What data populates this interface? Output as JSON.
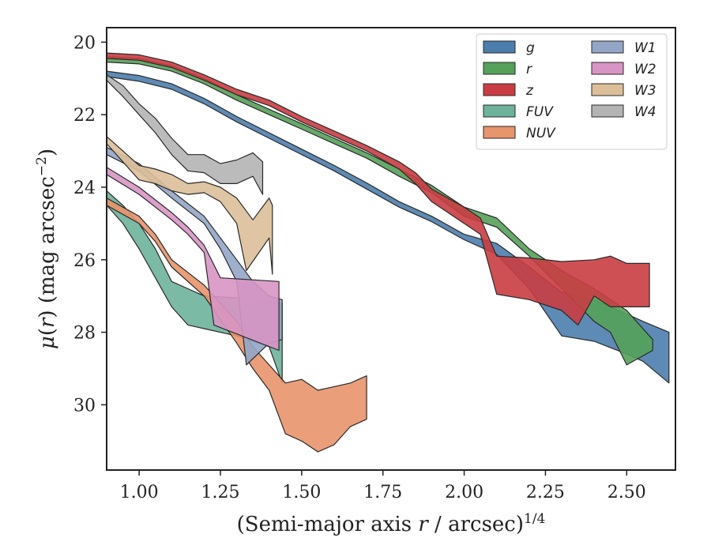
{
  "chart_data": {
    "type": "area",
    "xlabel": "(Semi-major axis r / arcsec)^{1/4}",
    "ylabel": "μ(r) (mag arcsec^{-2})",
    "xlim": [
      0.9,
      2.65
    ],
    "ylim": [
      31.8,
      19.6
    ],
    "y_inverted": true,
    "grid": false,
    "legend_position": "top-right",
    "legend_columns": 2,
    "x_ticks": [
      1.0,
      1.25,
      1.5,
      1.75,
      2.0,
      2.25,
      2.5
    ],
    "x_tick_labels": [
      "1.00",
      "1.25",
      "1.50",
      "1.75",
      "2.00",
      "2.25",
      "2.50"
    ],
    "y_ticks": [
      20,
      22,
      24,
      26,
      28,
      30
    ],
    "y_tick_labels": [
      "20",
      "22",
      "24",
      "26",
      "28",
      "30"
    ],
    "series": [
      {
        "name": "g",
        "color": "#4c7ead",
        "upper": [
          [
            0.9,
            20.8
          ],
          [
            1.0,
            20.92
          ],
          [
            1.1,
            21.15
          ],
          [
            1.2,
            21.55
          ],
          [
            1.3,
            22.05
          ],
          [
            1.4,
            22.5
          ],
          [
            1.5,
            22.95
          ],
          [
            1.6,
            23.4
          ],
          [
            1.7,
            23.88
          ],
          [
            1.8,
            24.4
          ],
          [
            1.9,
            24.8
          ],
          [
            2.0,
            25.3
          ],
          [
            2.1,
            25.55
          ],
          [
            2.2,
            26.2
          ],
          [
            2.3,
            26.9
          ],
          [
            2.4,
            27.1
          ],
          [
            2.5,
            27.5
          ],
          [
            2.55,
            27.7
          ],
          [
            2.63,
            28.0
          ]
        ],
        "lower": [
          [
            0.9,
            20.95
          ],
          [
            1.0,
            21.08
          ],
          [
            1.1,
            21.3
          ],
          [
            1.2,
            21.7
          ],
          [
            1.3,
            22.2
          ],
          [
            1.4,
            22.65
          ],
          [
            1.5,
            23.1
          ],
          [
            1.6,
            23.55
          ],
          [
            1.7,
            24.05
          ],
          [
            1.8,
            24.55
          ],
          [
            1.9,
            24.95
          ],
          [
            2.0,
            25.45
          ],
          [
            2.1,
            25.85
          ],
          [
            2.2,
            26.8
          ],
          [
            2.3,
            28.1
          ],
          [
            2.4,
            28.25
          ],
          [
            2.5,
            28.6
          ],
          [
            2.55,
            28.8
          ],
          [
            2.63,
            29.4
          ]
        ]
      },
      {
        "name": "r",
        "color": "#55a15a",
        "upper": [
          [
            0.9,
            20.4
          ],
          [
            1.0,
            20.45
          ],
          [
            1.1,
            20.65
          ],
          [
            1.2,
            21.0
          ],
          [
            1.3,
            21.45
          ],
          [
            1.4,
            21.85
          ],
          [
            1.5,
            22.25
          ],
          [
            1.6,
            22.65
          ],
          [
            1.7,
            23.05
          ],
          [
            1.8,
            23.5
          ],
          [
            1.9,
            23.95
          ],
          [
            2.0,
            24.55
          ],
          [
            2.1,
            24.85
          ],
          [
            2.2,
            25.7
          ],
          [
            2.3,
            26.3
          ],
          [
            2.4,
            26.8
          ],
          [
            2.45,
            27.1
          ],
          [
            2.5,
            27.4
          ],
          [
            2.58,
            28.2
          ]
        ],
        "lower": [
          [
            0.9,
            20.55
          ],
          [
            1.0,
            20.6
          ],
          [
            1.1,
            20.8
          ],
          [
            1.2,
            21.15
          ],
          [
            1.3,
            21.6
          ],
          [
            1.4,
            22.0
          ],
          [
            1.5,
            22.4
          ],
          [
            1.6,
            22.8
          ],
          [
            1.7,
            23.2
          ],
          [
            1.8,
            23.7
          ],
          [
            1.9,
            24.15
          ],
          [
            2.0,
            24.8
          ],
          [
            2.1,
            25.1
          ],
          [
            2.2,
            25.9
          ],
          [
            2.3,
            26.8
          ],
          [
            2.4,
            27.7
          ],
          [
            2.45,
            28.0
          ],
          [
            2.5,
            28.9
          ],
          [
            2.58,
            28.5
          ]
        ]
      },
      {
        "name": "z",
        "color": "#c93d42",
        "upper": [
          [
            0.9,
            20.3
          ],
          [
            1.0,
            20.35
          ],
          [
            1.1,
            20.55
          ],
          [
            1.2,
            20.9
          ],
          [
            1.3,
            21.3
          ],
          [
            1.4,
            21.6
          ],
          [
            1.5,
            22.05
          ],
          [
            1.6,
            22.45
          ],
          [
            1.7,
            22.85
          ],
          [
            1.8,
            23.3
          ],
          [
            1.85,
            23.6
          ],
          [
            1.9,
            24.05
          ],
          [
            2.0,
            24.55
          ],
          [
            2.05,
            24.85
          ],
          [
            2.1,
            25.9
          ],
          [
            2.2,
            25.95
          ],
          [
            2.3,
            26.05
          ],
          [
            2.4,
            26.0
          ],
          [
            2.45,
            25.9
          ],
          [
            2.5,
            26.1
          ],
          [
            2.57,
            26.1
          ]
        ],
        "lower": [
          [
            0.9,
            20.45
          ],
          [
            1.0,
            20.5
          ],
          [
            1.1,
            20.7
          ],
          [
            1.2,
            21.05
          ],
          [
            1.3,
            21.45
          ],
          [
            1.4,
            21.75
          ],
          [
            1.5,
            22.2
          ],
          [
            1.6,
            22.6
          ],
          [
            1.7,
            23.0
          ],
          [
            1.8,
            23.5
          ],
          [
            1.85,
            23.9
          ],
          [
            1.9,
            24.4
          ],
          [
            2.0,
            25.0
          ],
          [
            2.05,
            25.3
          ],
          [
            2.1,
            26.95
          ],
          [
            2.2,
            27.1
          ],
          [
            2.3,
            27.4
          ],
          [
            2.35,
            27.8
          ],
          [
            2.4,
            27.0
          ],
          [
            2.45,
            27.3
          ],
          [
            2.5,
            27.3
          ],
          [
            2.57,
            27.3
          ]
        ]
      },
      {
        "name": "FUV",
        "color": "#6db29a",
        "upper": [
          [
            0.9,
            24.1
          ],
          [
            0.95,
            24.5
          ],
          [
            1.0,
            25.0
          ],
          [
            1.05,
            25.7
          ],
          [
            1.1,
            26.6
          ],
          [
            1.15,
            26.8
          ],
          [
            1.2,
            27.0
          ],
          [
            1.3,
            27.05
          ],
          [
            1.4,
            27.1
          ],
          [
            1.44,
            27.2
          ]
        ],
        "lower": [
          [
            0.9,
            24.5
          ],
          [
            0.95,
            25.0
          ],
          [
            1.0,
            25.7
          ],
          [
            1.05,
            26.5
          ],
          [
            1.1,
            27.3
          ],
          [
            1.15,
            27.8
          ],
          [
            1.2,
            27.9
          ],
          [
            1.3,
            28.1
          ],
          [
            1.4,
            28.4
          ],
          [
            1.44,
            29.4
          ]
        ]
      },
      {
        "name": "NUV",
        "color": "#e8946c",
        "upper": [
          [
            0.9,
            24.3
          ],
          [
            1.0,
            24.8
          ],
          [
            1.05,
            25.3
          ],
          [
            1.1,
            26.0
          ],
          [
            1.2,
            26.7
          ],
          [
            1.3,
            27.7
          ],
          [
            1.35,
            28.4
          ],
          [
            1.4,
            28.9
          ],
          [
            1.45,
            29.4
          ],
          [
            1.5,
            29.3
          ],
          [
            1.55,
            29.6
          ],
          [
            1.6,
            29.5
          ],
          [
            1.65,
            29.4
          ],
          [
            1.7,
            29.2
          ]
        ],
        "lower": [
          [
            0.9,
            24.5
          ],
          [
            1.0,
            25.0
          ],
          [
            1.05,
            25.5
          ],
          [
            1.1,
            26.2
          ],
          [
            1.2,
            27.0
          ],
          [
            1.3,
            28.3
          ],
          [
            1.35,
            29.0
          ],
          [
            1.4,
            29.6
          ],
          [
            1.45,
            30.8
          ],
          [
            1.5,
            31.0
          ],
          [
            1.55,
            31.3
          ],
          [
            1.6,
            31.1
          ],
          [
            1.65,
            30.6
          ],
          [
            1.7,
            30.4
          ]
        ]
      },
      {
        "name": "W1",
        "color": "#94a6c8",
        "upper": [
          [
            0.9,
            22.9
          ],
          [
            1.0,
            23.35
          ],
          [
            1.1,
            24.1
          ],
          [
            1.2,
            24.8
          ],
          [
            1.25,
            25.4
          ],
          [
            1.3,
            26.0
          ],
          [
            1.35,
            26.6
          ],
          [
            1.4,
            27.0
          ],
          [
            1.44,
            27.1
          ]
        ],
        "lower": [
          [
            0.9,
            23.1
          ],
          [
            1.0,
            23.55
          ],
          [
            1.1,
            24.3
          ],
          [
            1.2,
            25.0
          ],
          [
            1.25,
            25.7
          ],
          [
            1.3,
            26.6
          ],
          [
            1.33,
            28.9
          ],
          [
            1.4,
            28.3
          ],
          [
            1.44,
            28.2
          ]
        ]
      },
      {
        "name": "W2",
        "color": "#d895c4",
        "upper": [
          [
            0.9,
            23.45
          ],
          [
            1.0,
            24.0
          ],
          [
            1.1,
            24.7
          ],
          [
            1.15,
            25.1
          ],
          [
            1.2,
            25.6
          ],
          [
            1.25,
            26.5
          ],
          [
            1.43,
            26.6
          ]
        ],
        "lower": [
          [
            0.9,
            23.65
          ],
          [
            1.0,
            24.2
          ],
          [
            1.1,
            24.9
          ],
          [
            1.15,
            25.3
          ],
          [
            1.2,
            25.8
          ],
          [
            1.23,
            27.8
          ],
          [
            1.43,
            28.5
          ]
        ]
      },
      {
        "name": "W3",
        "color": "#dcbf99",
        "upper": [
          [
            0.9,
            22.6
          ],
          [
            1.0,
            23.4
          ],
          [
            1.05,
            23.5
          ],
          [
            1.1,
            23.65
          ],
          [
            1.15,
            23.9
          ],
          [
            1.2,
            23.85
          ],
          [
            1.25,
            24.0
          ],
          [
            1.3,
            24.3
          ],
          [
            1.35,
            24.9
          ],
          [
            1.4,
            24.3
          ],
          [
            1.41,
            24.5
          ]
        ],
        "lower": [
          [
            0.9,
            22.8
          ],
          [
            1.0,
            23.8
          ],
          [
            1.05,
            23.9
          ],
          [
            1.1,
            24.1
          ],
          [
            1.15,
            24.2
          ],
          [
            1.2,
            24.15
          ],
          [
            1.25,
            24.4
          ],
          [
            1.3,
            25.0
          ],
          [
            1.33,
            26.3
          ],
          [
            1.4,
            25.4
          ],
          [
            1.41,
            26.4
          ]
        ]
      },
      {
        "name": "W4",
        "color": "#b4b4b4",
        "upper": [
          [
            0.9,
            20.9
          ],
          [
            0.95,
            21.2
          ],
          [
            1.0,
            21.7
          ],
          [
            1.05,
            22.1
          ],
          [
            1.1,
            22.65
          ],
          [
            1.15,
            23.1
          ],
          [
            1.2,
            23.1
          ],
          [
            1.25,
            23.35
          ],
          [
            1.3,
            23.25
          ],
          [
            1.35,
            23.05
          ],
          [
            1.38,
            23.3
          ]
        ],
        "lower": [
          [
            0.9,
            21.05
          ],
          [
            0.95,
            21.5
          ],
          [
            1.0,
            22.0
          ],
          [
            1.05,
            22.5
          ],
          [
            1.1,
            23.1
          ],
          [
            1.15,
            23.55
          ],
          [
            1.2,
            23.6
          ],
          [
            1.25,
            23.9
          ],
          [
            1.3,
            23.9
          ],
          [
            1.35,
            23.7
          ],
          [
            1.38,
            24.2
          ]
        ]
      }
    ]
  }
}
